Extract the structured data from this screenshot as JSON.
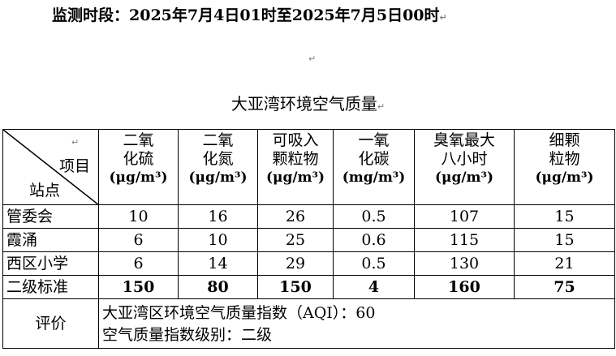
{
  "header": {
    "period": "监测时段：2025年7月4日01时至2025年7月5日00时",
    "blank_mark": "↵",
    "title": "大亚湾环境空气质量"
  },
  "table": {
    "corner": {
      "top_label": "项目",
      "bottom_label": "站点",
      "mark": "↵"
    },
    "columns": [
      {
        "line1": "二氧",
        "line2": "化硫",
        "unit": "(μg/m³)"
      },
      {
        "line1": "二氧",
        "line2": "化氮",
        "unit": "(μg/m³)"
      },
      {
        "line1": "可吸入",
        "line2": "颗粒物",
        "unit": "(μg/m³)"
      },
      {
        "line1": "一氧",
        "line2": "化碳",
        "unit": "(mg/m³)"
      },
      {
        "line1": "臭氧最大",
        "line2": "八小时",
        "unit": "(μg/m³)"
      },
      {
        "line1": "细颗",
        "line2": "粒物",
        "unit": "(μg/m³)"
      }
    ],
    "rows": [
      {
        "station": "管委会",
        "values": [
          "10",
          "16",
          "26",
          "0.5",
          "107",
          "15"
        ]
      },
      {
        "station": "霞涌",
        "values": [
          "6",
          "10",
          "25",
          "0.6",
          "115",
          "15"
        ]
      },
      {
        "station": "西区小学",
        "values": [
          "6",
          "14",
          "29",
          "0.5",
          "130",
          "21"
        ]
      }
    ],
    "standard": {
      "station": "二级标准",
      "values": [
        "150",
        "80",
        "150",
        "4",
        "160",
        "75"
      ]
    },
    "evaluation": {
      "label": "评价",
      "line1": "大亚湾区环境空气质量指数（AQI）：60",
      "line2": "空气质量指数级别：二级"
    }
  }
}
